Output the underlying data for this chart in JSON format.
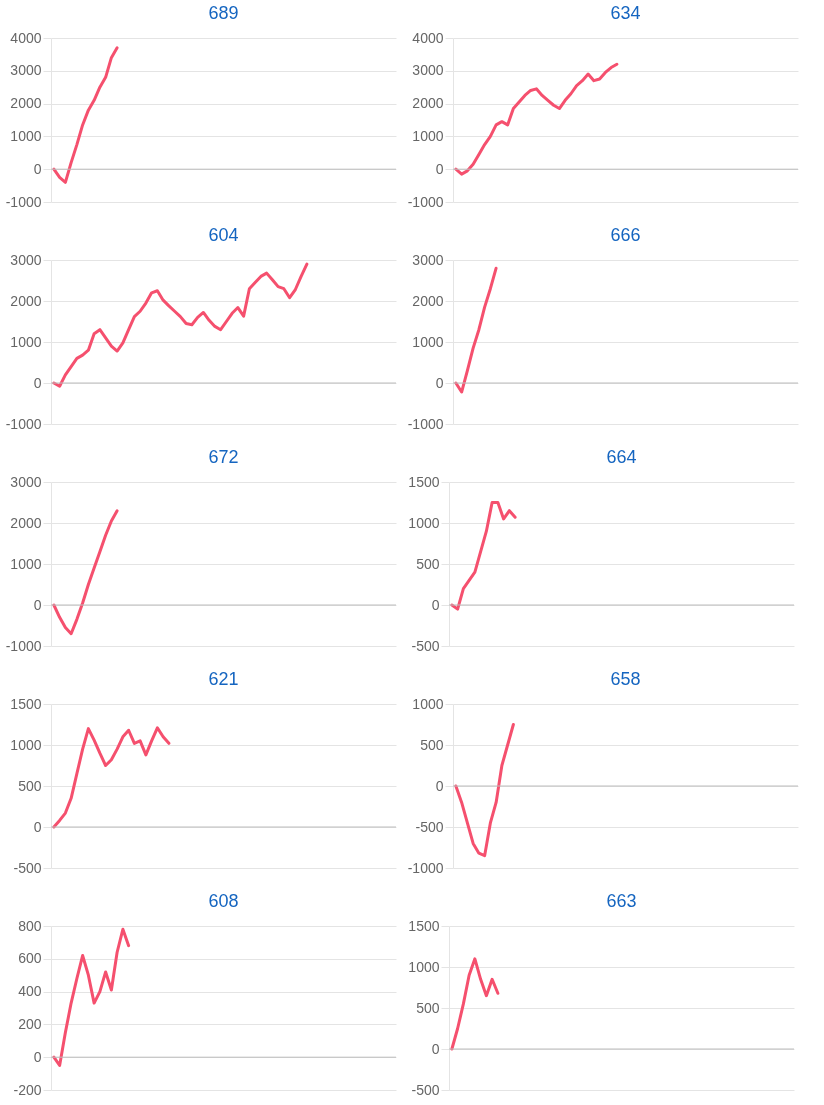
{
  "chart_data": [
    {
      "type": "line",
      "title": "689",
      "categories": [
        null,
        null,
        null,
        null,
        null,
        null,
        null,
        null,
        null,
        null,
        null,
        null,
        null,
        null,
        null,
        null,
        null,
        null,
        null,
        null,
        null,
        null,
        null,
        null,
        null,
        null,
        null,
        null,
        null,
        null,
        null,
        null,
        null,
        null,
        null,
        null,
        null,
        null,
        null,
        null,
        null,
        null,
        null,
        null,
        null,
        null,
        null,
        null,
        null,
        null,
        null,
        null,
        null,
        null,
        null,
        null,
        null,
        null,
        null,
        null
      ],
      "ylim": [
        -1000,
        4000
      ],
      "yticks": [
        -1000,
        0,
        1000,
        2000,
        3000,
        4000
      ],
      "grid": "y",
      "tick_labels": "y",
      "series": [
        {
          "color": "#f5506e",
          "values": [
            0,
            -250,
            -400,
            200,
            750,
            1350,
            1800,
            2100,
            2500,
            2800,
            3400,
            3700,
            null,
            null,
            null,
            null,
            null,
            null,
            null,
            null,
            null,
            null,
            null,
            null,
            null,
            null,
            null,
            null,
            null,
            null,
            null,
            null,
            null,
            null,
            null,
            null,
            null,
            null,
            null,
            null,
            null,
            null,
            null,
            null,
            null,
            null,
            null,
            null,
            null,
            null,
            null,
            null,
            null,
            null,
            null,
            null,
            null,
            null,
            null,
            null
          ]
        }
      ]
    },
    {
      "type": "line",
      "title": "634",
      "categories": [
        null,
        null,
        null,
        null,
        null,
        null,
        null,
        null,
        null,
        null,
        null,
        null,
        null,
        null,
        null,
        null,
        null,
        null,
        null,
        null,
        null,
        null,
        null,
        null,
        null,
        null,
        null,
        null,
        null,
        null,
        null,
        null,
        null,
        null,
        null,
        null,
        null,
        null,
        null,
        null,
        null,
        null,
        null,
        null,
        null,
        null,
        null,
        null,
        null,
        null,
        null,
        null,
        null,
        null,
        null,
        null,
        null,
        null,
        null,
        null
      ],
      "ylim": [
        -1000,
        4000
      ],
      "yticks": [
        -1000,
        0,
        1000,
        2000,
        3000,
        4000
      ],
      "grid": "y",
      "tick_labels": "y",
      "series": [
        {
          "color": "#f5506e",
          "values": [
            0,
            -150,
            -50,
            150,
            450,
            750,
            1000,
            1350,
            1450,
            1350,
            1850,
            2050,
            2250,
            2400,
            2450,
            2250,
            2100,
            1950,
            1850,
            2100,
            2300,
            2550,
            2700,
            2900,
            2700,
            2750,
            2950,
            3100,
            3200,
            null,
            null,
            null,
            null,
            null,
            null,
            null,
            null,
            null,
            null,
            null,
            null,
            null,
            null,
            null,
            null,
            null,
            null,
            null,
            null,
            null,
            null,
            null,
            null,
            null,
            null,
            null,
            null,
            null,
            null,
            null
          ]
        }
      ]
    },
    {
      "type": "line",
      "title": "604",
      "categories": [
        null,
        null,
        null,
        null,
        null,
        null,
        null,
        null,
        null,
        null,
        null,
        null,
        null,
        null,
        null,
        null,
        null,
        null,
        null,
        null,
        null,
        null,
        null,
        null,
        null,
        null,
        null,
        null,
        null,
        null,
        null,
        null,
        null,
        null,
        null,
        null,
        null,
        null,
        null,
        null,
        null,
        null,
        null,
        null,
        null,
        null,
        null,
        null,
        null,
        null,
        null,
        null,
        null,
        null,
        null,
        null,
        null,
        null,
        null,
        null
      ],
      "ylim": [
        -1000,
        3000
      ],
      "yticks": [
        -1000,
        0,
        1000,
        2000,
        3000
      ],
      "grid": "y",
      "tick_labels": "y",
      "series": [
        {
          "color": "#f5506e",
          "values": [
            0,
            -80,
            200,
            400,
            600,
            680,
            800,
            1200,
            1300,
            1100,
            900,
            780,
            980,
            1300,
            1620,
            1750,
            1950,
            2200,
            2250,
            2020,
            1880,
            1750,
            1620,
            1450,
            1420,
            1600,
            1720,
            1530,
            1380,
            1300,
            1500,
            1700,
            1840,
            1630,
            2300,
            2450,
            2600,
            2680,
            2520,
            2350,
            2300,
            2080,
            2280,
            2600,
            2900,
            null,
            null,
            null,
            null,
            null,
            null,
            null,
            null,
            null,
            null,
            null,
            null,
            null,
            null,
            null
          ]
        }
      ]
    },
    {
      "type": "line",
      "title": "666",
      "categories": [
        null,
        null,
        null,
        null,
        null,
        null,
        null,
        null,
        null,
        null,
        null,
        null,
        null,
        null,
        null,
        null,
        null,
        null,
        null,
        null,
        null,
        null,
        null,
        null,
        null,
        null,
        null,
        null,
        null,
        null,
        null,
        null,
        null,
        null,
        null,
        null,
        null,
        null,
        null,
        null,
        null,
        null,
        null,
        null,
        null,
        null,
        null,
        null,
        null,
        null,
        null,
        null,
        null,
        null,
        null,
        null,
        null,
        null,
        null,
        null
      ],
      "ylim": [
        -1000,
        3000
      ],
      "yticks": [
        -1000,
        0,
        1000,
        2000,
        3000
      ],
      "grid": "y",
      "tick_labels": "y",
      "series": [
        {
          "color": "#f5506e",
          "values": [
            0,
            -220,
            300,
            850,
            1300,
            1850,
            2300,
            2800,
            null,
            null,
            null,
            null,
            null,
            null,
            null,
            null,
            null,
            null,
            null,
            null,
            null,
            null,
            null,
            null,
            null,
            null,
            null,
            null,
            null,
            null,
            null,
            null,
            null,
            null,
            null,
            null,
            null,
            null,
            null,
            null,
            null,
            null,
            null,
            null,
            null,
            null,
            null,
            null,
            null,
            null,
            null,
            null,
            null,
            null,
            null,
            null,
            null,
            null,
            null,
            null
          ]
        }
      ]
    },
    {
      "type": "line",
      "title": "672",
      "categories": [
        null,
        null,
        null,
        null,
        null,
        null,
        null,
        null,
        null,
        null,
        null,
        null,
        null,
        null,
        null,
        null,
        null,
        null,
        null,
        null,
        null,
        null,
        null,
        null,
        null,
        null,
        null,
        null,
        null,
        null,
        null,
        null,
        null,
        null,
        null,
        null,
        null,
        null,
        null,
        null,
        null,
        null,
        null,
        null,
        null,
        null,
        null,
        null,
        null,
        null,
        null,
        null,
        null,
        null,
        null,
        null,
        null,
        null,
        null,
        null
      ],
      "ylim": [
        -1000,
        3000
      ],
      "yticks": [
        -1000,
        0,
        1000,
        2000,
        3000
      ],
      "grid": "y",
      "tick_labels": "y",
      "series": [
        {
          "color": "#f5506e",
          "values": [
            0,
            -300,
            -550,
            -700,
            -350,
            50,
            500,
            900,
            1300,
            1700,
            2050,
            2300,
            null,
            null,
            null,
            null,
            null,
            null,
            null,
            null,
            null,
            null,
            null,
            null,
            null,
            null,
            null,
            null,
            null,
            null,
            null,
            null,
            null,
            null,
            null,
            null,
            null,
            null,
            null,
            null,
            null,
            null,
            null,
            null,
            null,
            null,
            null,
            null,
            null,
            null,
            null,
            null,
            null,
            null,
            null,
            null,
            null,
            null,
            null,
            null
          ]
        }
      ]
    },
    {
      "type": "line",
      "title": "664",
      "categories": [
        null,
        null,
        null,
        null,
        null,
        null,
        null,
        null,
        null,
        null,
        null,
        null,
        null,
        null,
        null,
        null,
        null,
        null,
        null,
        null,
        null,
        null,
        null,
        null,
        null,
        null,
        null,
        null,
        null,
        null,
        null,
        null,
        null,
        null,
        null,
        null,
        null,
        null,
        null,
        null,
        null,
        null,
        null,
        null,
        null,
        null,
        null,
        null,
        null,
        null,
        null,
        null,
        null,
        null,
        null,
        null,
        null,
        null,
        null,
        null
      ],
      "ylim": [
        -500,
        1500
      ],
      "yticks": [
        -500,
        0,
        500,
        1000,
        1500
      ],
      "grid": "y",
      "tick_labels": "y",
      "series": [
        {
          "color": "#f5506e",
          "values": [
            0,
            -50,
            200,
            300,
            400,
            650,
            900,
            1250,
            1250,
            1050,
            1150,
            1070,
            null,
            null,
            null,
            null,
            null,
            null,
            null,
            null,
            null,
            null,
            null,
            null,
            null,
            null,
            null,
            null,
            null,
            null,
            null,
            null,
            null,
            null,
            null,
            null,
            null,
            null,
            null,
            null,
            null,
            null,
            null,
            null,
            null,
            null,
            null,
            null,
            null,
            null,
            null,
            null,
            null,
            null,
            null,
            null,
            null,
            null,
            null,
            null
          ]
        }
      ]
    },
    {
      "type": "line",
      "title": "621",
      "categories": [
        null,
        null,
        null,
        null,
        null,
        null,
        null,
        null,
        null,
        null,
        null,
        null,
        null,
        null,
        null,
        null,
        null,
        null,
        null,
        null,
        null,
        null,
        null,
        null,
        null,
        null,
        null,
        null,
        null,
        null,
        null,
        null,
        null,
        null,
        null,
        null,
        null,
        null,
        null,
        null,
        null,
        null,
        null,
        null,
        null,
        null,
        null,
        null,
        null,
        null,
        null,
        null,
        null,
        null,
        null,
        null,
        null,
        null,
        null,
        null
      ],
      "ylim": [
        -500,
        1500
      ],
      "yticks": [
        -500,
        0,
        500,
        1000,
        1500
      ],
      "grid": "y",
      "tick_labels": "y",
      "series": [
        {
          "color": "#f5506e",
          "values": [
            0,
            80,
            170,
            350,
            650,
            950,
            1200,
            1060,
            900,
            750,
            820,
            950,
            1100,
            1180,
            1020,
            1050,
            880,
            1050,
            1210,
            1100,
            1020,
            null,
            null,
            null,
            null,
            null,
            null,
            null,
            null,
            null,
            null,
            null,
            null,
            null,
            null,
            null,
            null,
            null,
            null,
            null,
            null,
            null,
            null,
            null,
            null,
            null,
            null,
            null,
            null,
            null,
            null,
            null,
            null,
            null,
            null,
            null,
            null,
            null,
            null,
            null
          ]
        }
      ]
    },
    {
      "type": "line",
      "title": "658",
      "categories": [
        null,
        null,
        null,
        null,
        null,
        null,
        null,
        null,
        null,
        null,
        null,
        null,
        null,
        null,
        null,
        null,
        null,
        null,
        null,
        null,
        null,
        null,
        null,
        null,
        null,
        null,
        null,
        null,
        null,
        null,
        null,
        null,
        null,
        null,
        null,
        null,
        null,
        null,
        null,
        null,
        null,
        null,
        null,
        null,
        null,
        null,
        null,
        null,
        null,
        null,
        null,
        null,
        null,
        null,
        null,
        null,
        null,
        null,
        null,
        null
      ],
      "ylim": [
        -1000,
        1000
      ],
      "yticks": [
        -1000,
        -500,
        0,
        500,
        1000
      ],
      "grid": "y",
      "tick_labels": "y",
      "series": [
        {
          "color": "#f5506e",
          "values": [
            0,
            -200,
            -450,
            -700,
            -820,
            -850,
            -450,
            -200,
            250,
            500,
            750,
            null,
            null,
            null,
            null,
            null,
            null,
            null,
            null,
            null,
            null,
            null,
            null,
            null,
            null,
            null,
            null,
            null,
            null,
            null,
            null,
            null,
            null,
            null,
            null,
            null,
            null,
            null,
            null,
            null,
            null,
            null,
            null,
            null,
            null,
            null,
            null,
            null,
            null,
            null,
            null,
            null,
            null,
            null,
            null,
            null,
            null,
            null,
            null,
            null
          ]
        }
      ]
    },
    {
      "type": "line",
      "title": "608",
      "categories": [
        null,
        null,
        null,
        null,
        null,
        null,
        null,
        null,
        null,
        null,
        null,
        null,
        null,
        null,
        null,
        null,
        null,
        null,
        null,
        null,
        null,
        null,
        null,
        null,
        null,
        null,
        null,
        null,
        null,
        null,
        null,
        null,
        null,
        null,
        null,
        null,
        null,
        null,
        null,
        null,
        null,
        null,
        null,
        null,
        null,
        null,
        null,
        null,
        null,
        null,
        null,
        null,
        null,
        null,
        null,
        null,
        null,
        null,
        null,
        null
      ],
      "ylim": [
        -200,
        800
      ],
      "yticks": [
        -200,
        0,
        200,
        400,
        600,
        800
      ],
      "grid": "y",
      "tick_labels": "y",
      "series": [
        {
          "color": "#f5506e",
          "values": [
            0,
            -50,
            150,
            330,
            480,
            620,
            500,
            330,
            400,
            520,
            410,
            640,
            780,
            680,
            null,
            null,
            null,
            null,
            null,
            null,
            null,
            null,
            null,
            null,
            null,
            null,
            null,
            null,
            null,
            null,
            null,
            null,
            null,
            null,
            null,
            null,
            null,
            null,
            null,
            null,
            null,
            null,
            null,
            null,
            null,
            null,
            null,
            null,
            null,
            null,
            null,
            null,
            null,
            null,
            null,
            null,
            null,
            null,
            null,
            null
          ]
        }
      ]
    },
    {
      "type": "line",
      "title": "663",
      "categories": [
        null,
        null,
        null,
        null,
        null,
        null,
        null,
        null,
        null,
        null,
        null,
        null,
        null,
        null,
        null,
        null,
        null,
        null,
        null,
        null,
        null,
        null,
        null,
        null,
        null,
        null,
        null,
        null,
        null,
        null,
        null,
        null,
        null,
        null,
        null,
        null,
        null,
        null,
        null,
        null,
        null,
        null,
        null,
        null,
        null,
        null,
        null,
        null,
        null,
        null,
        null,
        null,
        null,
        null,
        null,
        null,
        null,
        null,
        null,
        null
      ],
      "ylim": [
        -500,
        1500
      ],
      "yticks": [
        -500,
        0,
        500,
        1000,
        1500
      ],
      "grid": "y",
      "tick_labels": "y",
      "series": [
        {
          "color": "#f5506e",
          "values": [
            0,
            250,
            550,
            900,
            1100,
            850,
            650,
            850,
            680,
            null,
            null,
            null,
            null,
            null,
            null,
            null,
            null,
            null,
            null,
            null,
            null,
            null,
            null,
            null,
            null,
            null,
            null,
            null,
            null,
            null,
            null,
            null,
            null,
            null,
            null,
            null,
            null,
            null,
            null,
            null,
            null,
            null,
            null,
            null,
            null,
            null,
            null,
            null,
            null,
            null,
            null,
            null,
            null,
            null,
            null,
            null,
            null,
            null,
            null,
            null
          ]
        }
      ]
    }
  ]
}
